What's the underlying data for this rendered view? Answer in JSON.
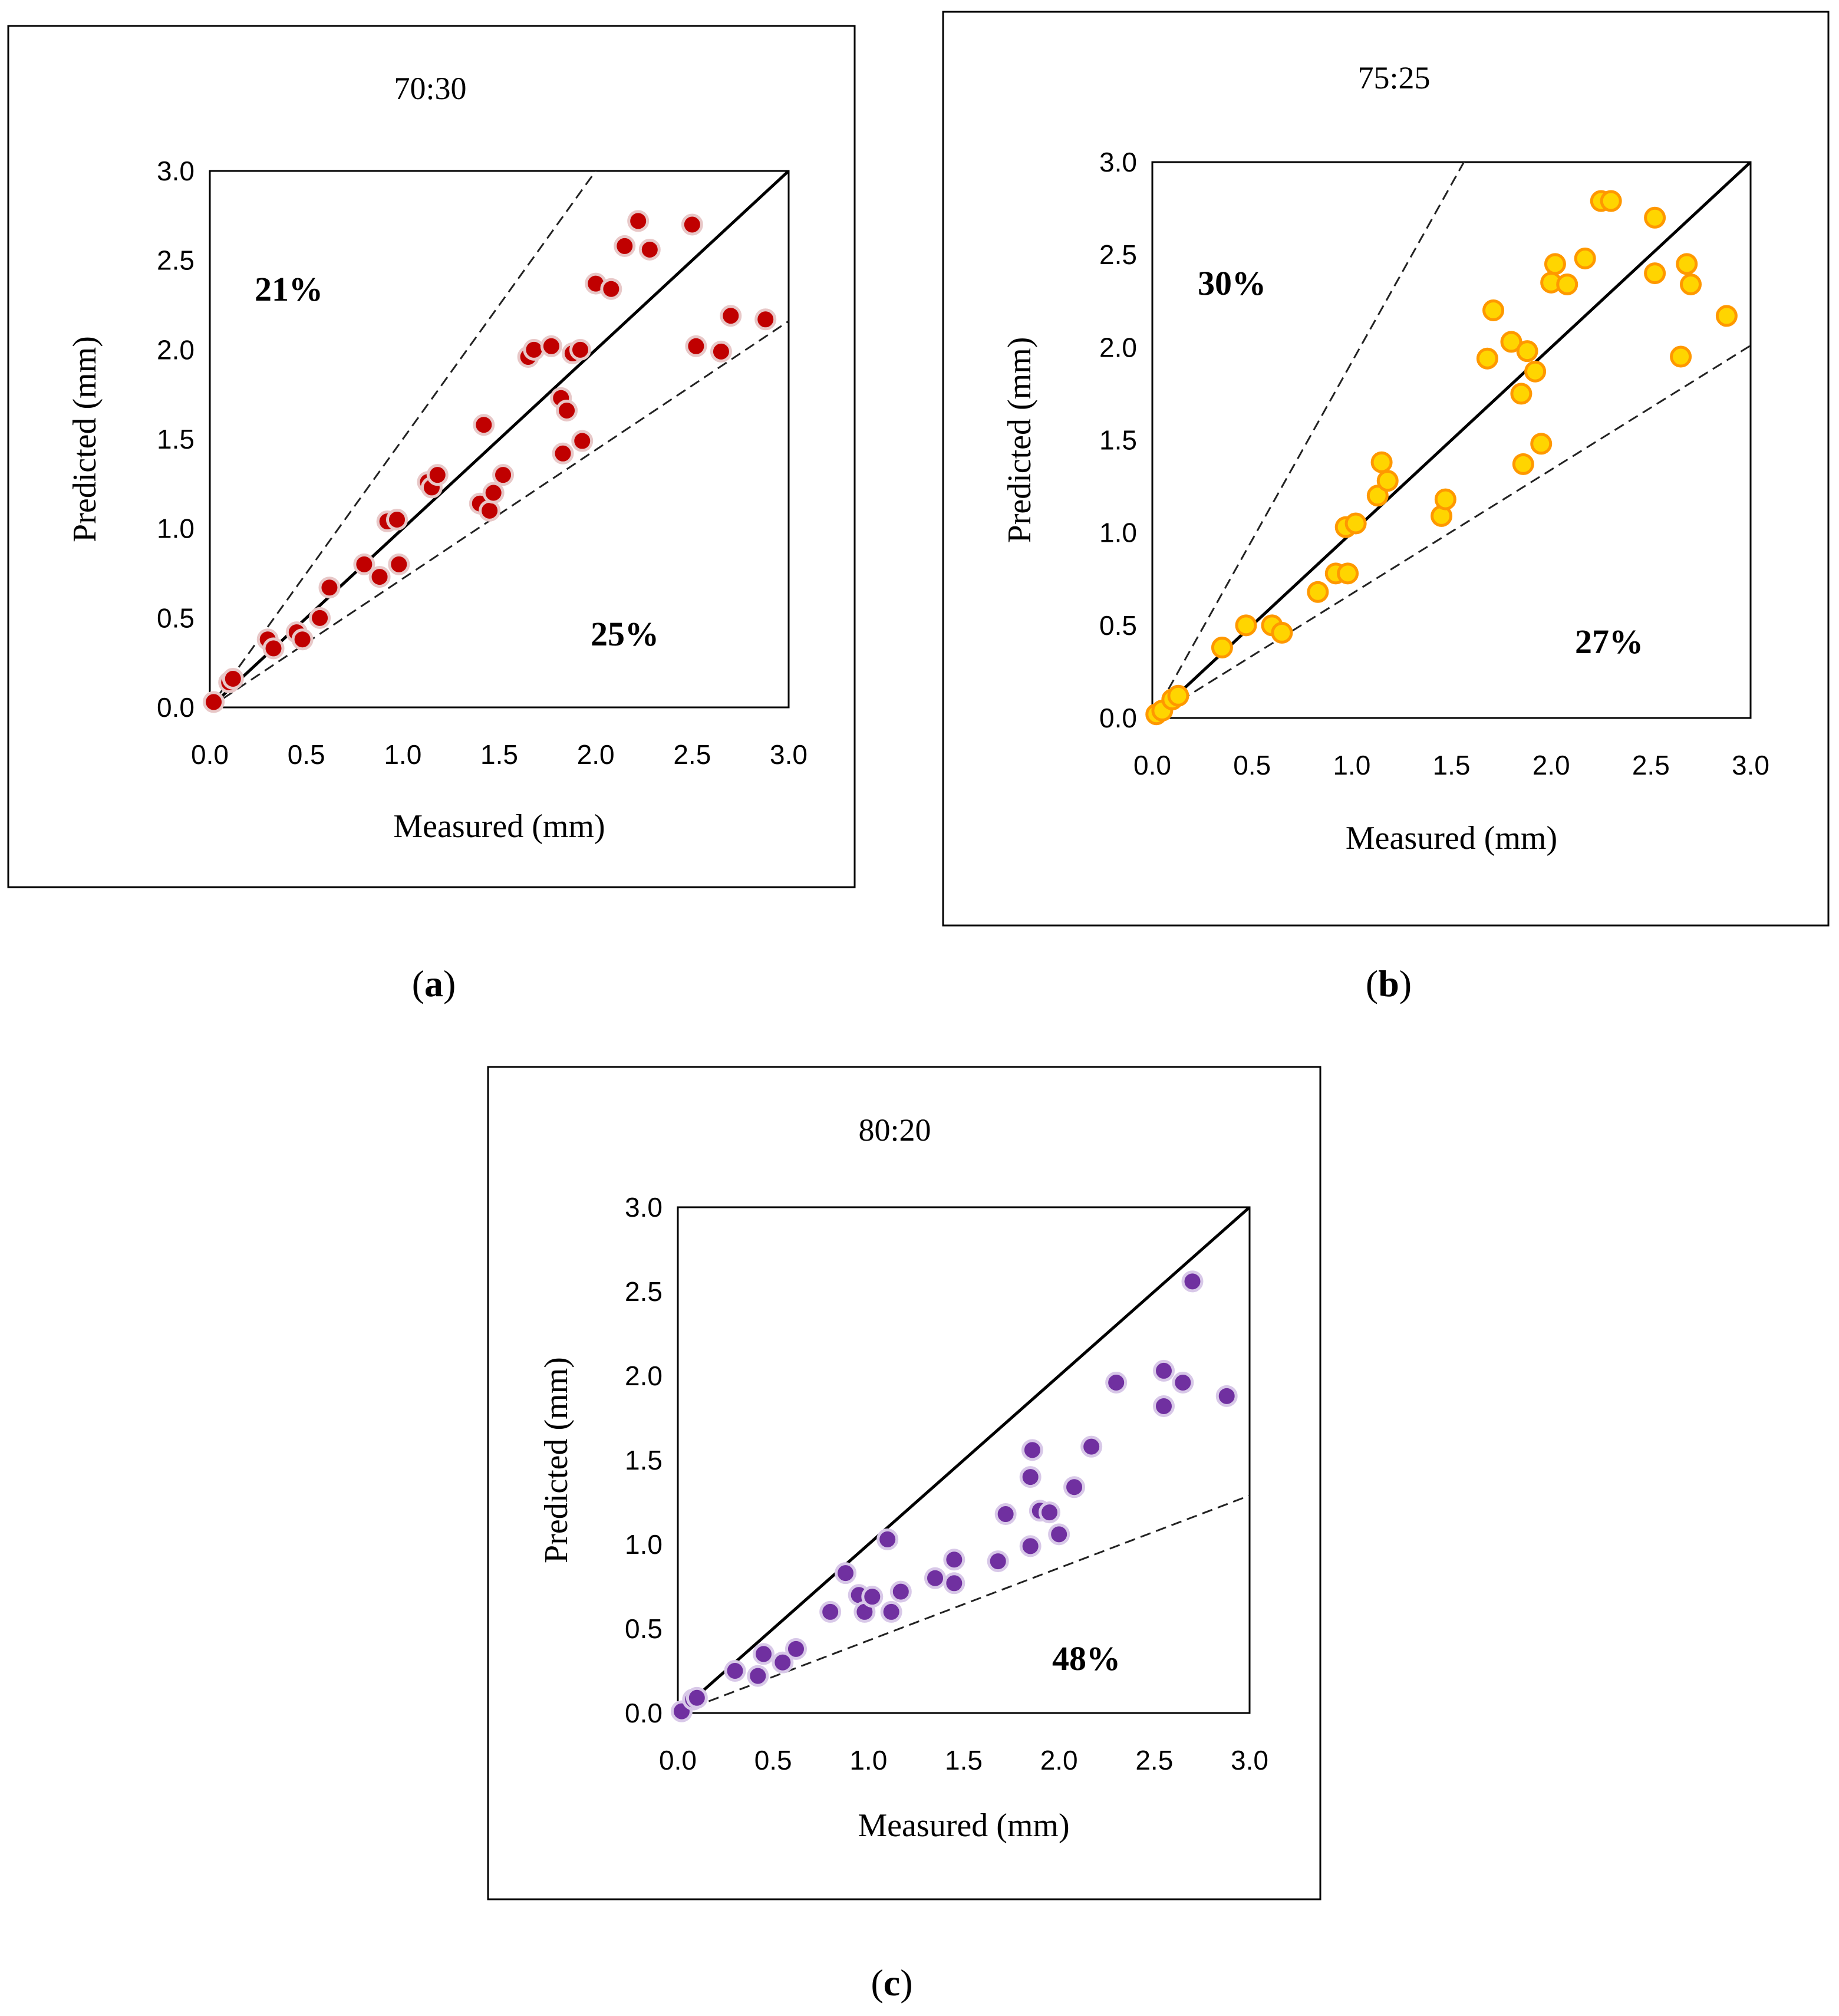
{
  "chart_data": [
    {
      "type": "scatter",
      "title": "70:30",
      "caption": "a",
      "xlabel": "Measured (mm)",
      "ylabel": "Predicted (mm)",
      "xlim": [
        0,
        3
      ],
      "ylim": [
        0,
        3
      ],
      "ticks": [
        "0.0",
        "0.5",
        "1.0",
        "1.5",
        "2.0",
        "2.5",
        "3.0"
      ],
      "marker_fill": "#c00000",
      "marker_edge": "#e8c8c8",
      "annotations": [
        {
          "text": "21%"
        },
        {
          "text": "25%"
        }
      ],
      "reference_lines": {
        "equality_slope": 1,
        "upper_slope": 1.5,
        "lower_slope": 0.72
      },
      "points": [
        [
          0.02,
          0.03
        ],
        [
          0.1,
          0.14
        ],
        [
          0.12,
          0.16
        ],
        [
          0.3,
          0.38
        ],
        [
          0.33,
          0.33
        ],
        [
          0.45,
          0.42
        ],
        [
          0.48,
          0.38
        ],
        [
          0.57,
          0.5
        ],
        [
          0.62,
          0.67
        ],
        [
          0.8,
          0.8
        ],
        [
          0.88,
          0.73
        ],
        [
          0.92,
          1.04
        ],
        [
          0.97,
          1.05
        ],
        [
          0.98,
          0.8
        ],
        [
          1.13,
          1.26
        ],
        [
          1.15,
          1.23
        ],
        [
          1.18,
          1.3
        ],
        [
          1.4,
          1.14
        ],
        [
          1.42,
          1.58
        ],
        [
          1.45,
          1.1
        ],
        [
          1.47,
          1.2
        ],
        [
          1.52,
          1.3
        ],
        [
          1.65,
          1.96
        ],
        [
          1.68,
          2.0
        ],
        [
          1.77,
          2.02
        ],
        [
          1.82,
          1.73
        ],
        [
          1.83,
          1.42
        ],
        [
          1.85,
          1.66
        ],
        [
          1.88,
          1.98
        ],
        [
          1.92,
          2.0
        ],
        [
          1.93,
          1.49
        ],
        [
          2.0,
          2.37
        ],
        [
          2.08,
          2.34
        ],
        [
          2.15,
          2.58
        ],
        [
          2.22,
          2.72
        ],
        [
          2.28,
          2.56
        ],
        [
          2.5,
          2.7
        ],
        [
          2.52,
          2.02
        ],
        [
          2.65,
          1.99
        ],
        [
          2.7,
          2.19
        ],
        [
          2.88,
          2.17
        ]
      ]
    },
    {
      "type": "scatter",
      "title": "75:25",
      "caption": "b",
      "xlabel": "Measured (mm)",
      "ylabel": "Predicted (mm)",
      "xlim": [
        0,
        3
      ],
      "ylim": [
        0,
        3
      ],
      "ticks": [
        "0.0",
        "0.5",
        "1.0",
        "1.5",
        "2.0",
        "2.5",
        "3.0"
      ],
      "marker_fill": "#ffd500",
      "marker_edge": "#ff9800",
      "annotations": [
        {
          "text": "30%"
        },
        {
          "text": "27%"
        }
      ],
      "reference_lines": {
        "equality_slope": 1,
        "upper_slope": 1.92,
        "lower_slope": 0.67
      },
      "points": [
        [
          0.02,
          0.02
        ],
        [
          0.05,
          0.04
        ],
        [
          0.1,
          0.1
        ],
        [
          0.13,
          0.12
        ],
        [
          0.35,
          0.38
        ],
        [
          0.47,
          0.5
        ],
        [
          0.6,
          0.5
        ],
        [
          0.65,
          0.46
        ],
        [
          0.83,
          0.68
        ],
        [
          0.92,
          0.78
        ],
        [
          0.97,
          1.03
        ],
        [
          0.98,
          0.78
        ],
        [
          1.02,
          1.05
        ],
        [
          1.13,
          1.2
        ],
        [
          1.15,
          1.38
        ],
        [
          1.18,
          1.28
        ],
        [
          1.45,
          1.09
        ],
        [
          1.47,
          1.18
        ],
        [
          1.68,
          1.94
        ],
        [
          1.71,
          2.2
        ],
        [
          1.8,
          2.03
        ],
        [
          1.85,
          1.75
        ],
        [
          1.86,
          1.37
        ],
        [
          1.88,
          1.98
        ],
        [
          1.92,
          1.87
        ],
        [
          1.95,
          1.48
        ],
        [
          2.0,
          2.35
        ],
        [
          2.02,
          2.45
        ],
        [
          2.08,
          2.34
        ],
        [
          2.17,
          2.48
        ],
        [
          2.25,
          2.79
        ],
        [
          2.3,
          2.79
        ],
        [
          2.52,
          2.4
        ],
        [
          2.52,
          2.7
        ],
        [
          2.65,
          1.95
        ],
        [
          2.68,
          2.45
        ],
        [
          2.7,
          2.34
        ],
        [
          2.88,
          2.17
        ]
      ]
    },
    {
      "type": "scatter",
      "title": "80:20",
      "caption": "c",
      "xlabel": "Measured (mm)",
      "ylabel": "Predicted (mm)",
      "xlim": [
        0,
        3
      ],
      "ylim": [
        0,
        3
      ],
      "ticks": [
        "0.0",
        "0.5",
        "1.0",
        "1.5",
        "2.0",
        "2.5",
        "3.0"
      ],
      "marker_fill": "#7030a0",
      "marker_edge": "#d8c8e8",
      "annotations": [
        {
          "text": "48%"
        }
      ],
      "reference_lines": {
        "equality_slope": 1,
        "lower_slope": 0.43
      },
      "points": [
        [
          0.02,
          0.01
        ],
        [
          0.08,
          0.08
        ],
        [
          0.1,
          0.09
        ],
        [
          0.3,
          0.25
        ],
        [
          0.42,
          0.22
        ],
        [
          0.45,
          0.35
        ],
        [
          0.55,
          0.3
        ],
        [
          0.62,
          0.38
        ],
        [
          0.8,
          0.6
        ],
        [
          0.88,
          0.83
        ],
        [
          0.95,
          0.7
        ],
        [
          0.98,
          0.6
        ],
        [
          1.02,
          0.69
        ],
        [
          1.1,
          1.03
        ],
        [
          1.12,
          0.6
        ],
        [
          1.17,
          0.72
        ],
        [
          1.35,
          0.8
        ],
        [
          1.45,
          0.77
        ],
        [
          1.45,
          0.91
        ],
        [
          1.68,
          0.9
        ],
        [
          1.72,
          1.18
        ],
        [
          1.85,
          0.99
        ],
        [
          1.85,
          1.4
        ],
        [
          1.86,
          1.56
        ],
        [
          1.9,
          1.2
        ],
        [
          1.95,
          1.19
        ],
        [
          2.0,
          1.06
        ],
        [
          2.08,
          1.34
        ],
        [
          2.17,
          1.58
        ],
        [
          2.3,
          1.96
        ],
        [
          2.55,
          1.82
        ],
        [
          2.55,
          2.03
        ],
        [
          2.65,
          1.96
        ],
        [
          2.7,
          2.56
        ],
        [
          2.88,
          1.88
        ]
      ]
    }
  ]
}
